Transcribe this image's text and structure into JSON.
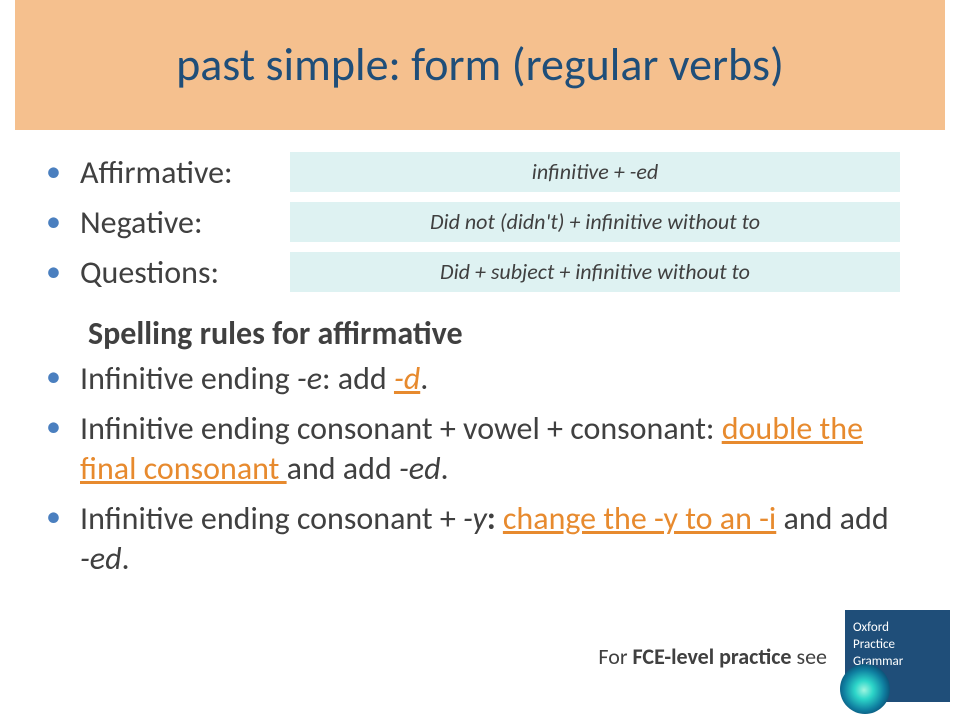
{
  "title": "past simple: form (regular verbs)",
  "forms": [
    {
      "label": "Affirmative:",
      "rule_parts": [
        "infinitive + -ed"
      ]
    },
    {
      "label": "Negative:",
      "rule_parts": [
        "Did not (",
        "didn't",
        ") + infinitive without ",
        "to"
      ]
    },
    {
      "label": "Questions:",
      "rule_parts": [
        "Did + subject + infinitive without ",
        "to"
      ]
    }
  ],
  "section_heading": "Spelling rules for affirmative",
  "spelling": {
    "rule1": {
      "pre": "Infinitive ending ",
      "it1": "-e",
      "mid": ": add ",
      "emph": "-d",
      "post": "."
    },
    "rule2": {
      "pre": "Infinitive ending consonant + vowel + consonant: ",
      "emph": "double the final consonant ",
      "mid": "and add ",
      "it1": "-ed",
      "post": "."
    },
    "rule3": {
      "pre": "Infinitive ending consonant + ",
      "it1": "-y",
      "bold_colon": ": ",
      "emph": "change the -y to an -i",
      "mid": " and add ",
      "it2": "-ed",
      "post": "."
    }
  },
  "footer": {
    "text_pre": "For ",
    "text_bold": "FCE-level practice",
    "text_post": " see",
    "cover_line1": "Oxford",
    "cover_line2": "Practice",
    "cover_line3": "Grammar"
  },
  "colors": {
    "title_bg": "#f5c08e",
    "title_text": "#1f4e79",
    "rule_bg": "#def2f2",
    "body_text": "#404040",
    "bullet": "#4a7fbf",
    "emph": "#e78a2e",
    "cover_bg": "#1f4e79"
  }
}
